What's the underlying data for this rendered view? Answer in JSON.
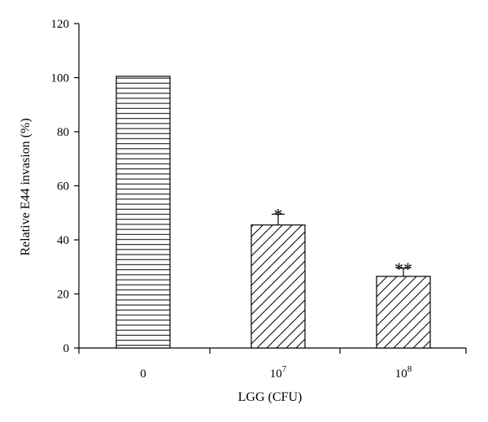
{
  "chart_data": {
    "type": "bar",
    "categories": [
      {
        "base": "0",
        "exp": ""
      },
      {
        "base": "10",
        "exp": "7"
      },
      {
        "base": "10",
        "exp": "8"
      }
    ],
    "values": [
      100.5,
      45.5,
      26.5
    ],
    "errors": [
      0,
      4,
      3
    ],
    "annotations": [
      "",
      "*",
      "**"
    ],
    "patterns": [
      "horizontal",
      "diagonal",
      "diagonal"
    ],
    "xlabel": "LGG (CFU)",
    "ylabel": "Relative E44 invasion (%)",
    "ylim": [
      0,
      120
    ],
    "yticks": [
      "0",
      "20",
      "40",
      "60",
      "80",
      "100",
      "120"
    ],
    "grid": false,
    "colors": {
      "bar_fill": "#ffffff",
      "bar_stroke": "#000000",
      "hatch": "#000000"
    }
  }
}
